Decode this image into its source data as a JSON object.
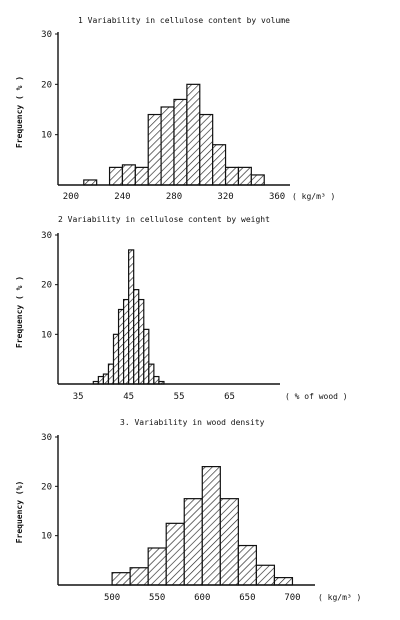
{
  "chart_data": [
    {
      "type": "bar",
      "title": "1  Variability  in  cellulose  content  by  volume",
      "ylabel": "Frequency ( % )",
      "xunit": "( kg/m³ )",
      "ylim": [
        0,
        30
      ],
      "yticks": [
        "10",
        "20",
        "30"
      ],
      "xlim": [
        190,
        370
      ],
      "xticks": [
        {
          "value": 200,
          "label": "200"
        },
        {
          "value": 240,
          "label": "240"
        },
        {
          "value": 280,
          "label": "280"
        },
        {
          "value": 320,
          "label": "320"
        },
        {
          "value": 360,
          "label": "360"
        }
      ],
      "bin_width": 10,
      "bins": [
        {
          "start": 210,
          "value": 1
        },
        {
          "start": 220,
          "value": 0
        },
        {
          "start": 230,
          "value": 3.5
        },
        {
          "start": 240,
          "value": 4
        },
        {
          "start": 250,
          "value": 3.5
        },
        {
          "start": 260,
          "value": 14
        },
        {
          "start": 270,
          "value": 15.5
        },
        {
          "start": 280,
          "value": 17
        },
        {
          "start": 290,
          "value": 20
        },
        {
          "start": 300,
          "value": 14
        },
        {
          "start": 310,
          "value": 8
        },
        {
          "start": 320,
          "value": 3.5
        },
        {
          "start": 330,
          "value": 3.5
        },
        {
          "start": 340,
          "value": 2
        }
      ]
    },
    {
      "type": "bar",
      "title": "2  Variability  in  cellulose  content  by  weight",
      "ylabel": "Frequency ( % )",
      "xunit": "( % of wood )",
      "ylim": [
        0,
        30
      ],
      "yticks": [
        "10",
        "20",
        "30"
      ],
      "xlim": [
        31,
        75
      ],
      "xticks": [
        {
          "value": 35,
          "label": "35"
        },
        {
          "value": 45,
          "label": "45"
        },
        {
          "value": 55,
          "label": "55"
        },
        {
          "value": 65,
          "label": "65"
        }
      ],
      "bin_width": 1,
      "bins": [
        {
          "start": 38,
          "value": 0.5
        },
        {
          "start": 39,
          "value": 1.5
        },
        {
          "start": 40,
          "value": 2
        },
        {
          "start": 41,
          "value": 4
        },
        {
          "start": 42,
          "value": 10
        },
        {
          "start": 43,
          "value": 15
        },
        {
          "start": 44,
          "value": 17
        },
        {
          "start": 45,
          "value": 27
        },
        {
          "start": 46,
          "value": 19
        },
        {
          "start": 47,
          "value": 17
        },
        {
          "start": 48,
          "value": 11
        },
        {
          "start": 49,
          "value": 4
        },
        {
          "start": 50,
          "value": 1.5
        },
        {
          "start": 51,
          "value": 0.5
        }
      ]
    },
    {
      "type": "bar",
      "title": "3.  Variability  in  wood  density",
      "ylabel": "Frequency (%)",
      "xunit": "( kg/m³ )",
      "ylim": [
        0,
        30
      ],
      "yticks": [
        "10",
        "20",
        "30"
      ],
      "xlim": [
        440,
        725
      ],
      "xticks": [
        {
          "value": 500,
          "label": "500"
        },
        {
          "value": 550,
          "label": "550"
        },
        {
          "value": 600,
          "label": "600"
        },
        {
          "value": 650,
          "label": "650"
        },
        {
          "value": 700,
          "label": "700"
        }
      ],
      "bin_width": 20,
      "bins": [
        {
          "start": 500,
          "value": 2.5
        },
        {
          "start": 520,
          "value": 3.5
        },
        {
          "start": 540,
          "value": 7.5
        },
        {
          "start": 560,
          "value": 12.5
        },
        {
          "start": 580,
          "value": 17.5
        },
        {
          "start": 600,
          "value": 24
        },
        {
          "start": 620,
          "value": 17.5
        },
        {
          "start": 640,
          "value": 8
        },
        {
          "start": 660,
          "value": 4
        },
        {
          "start": 680,
          "value": 1.5
        }
      ]
    }
  ]
}
